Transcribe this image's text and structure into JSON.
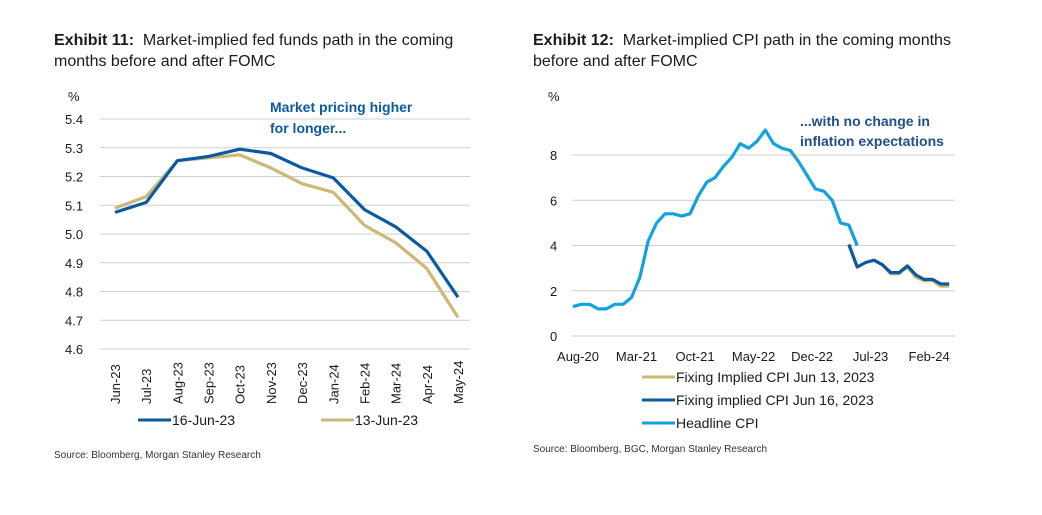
{
  "exhibits": [
    {
      "label": "Exhibit 11:",
      "title_line1": "Market-implied fed funds path in the coming",
      "title_line2": "months before and after FOMC",
      "source": "Source: Bloomberg, Morgan Stanley Research"
    },
    {
      "label": "Exhibit 12:",
      "title_line1": "Market-implied CPI path in the coming months",
      "title_line2": "before and after FOMC",
      "source": "Source: Bloomberg, BGC, Morgan Stanley Research"
    }
  ],
  "colors": {
    "dark_blue": "#0a5aa0",
    "gold": "#cdb877",
    "light_blue": "#12a3dc",
    "grid": "#cfcfcf",
    "annotation": "#0a5aa0",
    "annotation2": "#1f4e8c"
  },
  "chart_data": [
    {
      "type": "line",
      "title": "Market-implied fed funds path in the coming months before and after FOMC",
      "ylabel": "%",
      "xlabel": "",
      "ylim": [
        4.6,
        5.4
      ],
      "yticks": [
        "5.4",
        "5.3",
        "5.2",
        "5.1",
        "5.0",
        "4.9",
        "4.8",
        "4.7",
        "4.6"
      ],
      "ytick_values": [
        5.4,
        5.3,
        5.2,
        5.1,
        5.0,
        4.9,
        4.8,
        4.7,
        4.6
      ],
      "grid": true,
      "categories": [
        "Jun-23",
        "Jul-23",
        "Aug-23",
        "Sep-23",
        "Oct-23",
        "Nov-23",
        "Dec-23",
        "Jan-24",
        "Feb-24",
        "Mar-24",
        "Apr-24",
        "May-24"
      ],
      "series": [
        {
          "name": "16-Jun-23",
          "color": "#0a5aa0",
          "values": [
            5.075,
            5.11,
            5.255,
            5.27,
            5.295,
            5.28,
            5.23,
            5.195,
            5.085,
            5.025,
            4.94,
            4.78
          ]
        },
        {
          "name": "13-Jun-23",
          "color": "#cdb877",
          "values": [
            5.09,
            5.13,
            5.255,
            5.265,
            5.275,
            5.23,
            5.175,
            5.145,
            5.03,
            4.97,
            4.88,
            4.71
          ]
        }
      ],
      "annotation": [
        "Market pricing higher",
        "for longer..."
      ],
      "legend_position": "bottom"
    },
    {
      "type": "line",
      "title": "Market-implied CPI path in the coming months before and after FOMC",
      "ylabel": "%",
      "xlabel": "",
      "ylim": [
        0,
        9.5
      ],
      "yticks": [
        "8",
        "6",
        "4",
        "2",
        "0"
      ],
      "ytick_values": [
        8,
        6,
        4,
        2,
        0
      ],
      "grid": true,
      "x_start": "Aug-20",
      "xtick_labels": [
        "Aug-20",
        "Mar-21",
        "Oct-21",
        "May-22",
        "Dec-22",
        "Jul-23",
        "Feb-24"
      ],
      "xtick_month_index": [
        0,
        7,
        14,
        21,
        28,
        35,
        42
      ],
      "series": [
        {
          "name": "Fixing Implied CPI Jun 13, 2023",
          "color": "#cdb877",
          "start_index": 33,
          "values": [
            4.0,
            3.05,
            3.25,
            3.35,
            3.15,
            2.75,
            2.75,
            3.05,
            2.6,
            2.45,
            2.45,
            2.2,
            2.2
          ]
        },
        {
          "name": "Fixing implied CPI Jun 16, 2023",
          "color": "#0a5aa0",
          "start_index": 33,
          "values": [
            4.05,
            3.05,
            3.25,
            3.35,
            3.15,
            2.8,
            2.8,
            3.1,
            2.7,
            2.5,
            2.5,
            2.3,
            2.3
          ]
        },
        {
          "name": "Headline CPI",
          "color": "#12a3dc",
          "start_index": 0,
          "values": [
            1.3,
            1.4,
            1.4,
            1.2,
            1.2,
            1.4,
            1.4,
            1.7,
            2.6,
            4.2,
            5.0,
            5.4,
            5.4,
            5.3,
            5.4,
            6.2,
            6.8,
            7.0,
            7.5,
            7.9,
            8.5,
            8.3,
            8.6,
            9.1,
            8.5,
            8.3,
            8.2,
            7.7,
            7.1,
            6.5,
            6.4,
            6.0,
            5.0,
            4.9,
            4.0
          ]
        }
      ],
      "annotation": [
        "...with no change in",
        "inflation expectations"
      ],
      "legend_position": "bottom"
    }
  ]
}
